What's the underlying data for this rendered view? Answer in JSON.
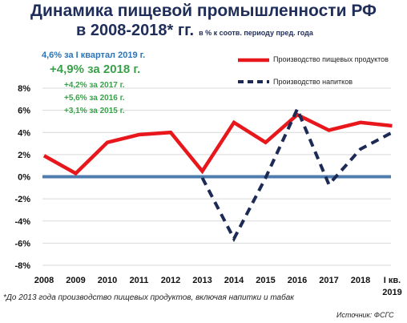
{
  "title_line1": "Динамика пищевой промышленности РФ",
  "title_line2": "в 2008-2018* гг.",
  "title_sub": "в % к соотв. периоду пред. года",
  "annotations": {
    "q1_2019": "4,6% за I квартал 2019 г.",
    "y2018": "+4,9% за 2018 г.",
    "y2017": "+4,2% за 2017 г.",
    "y2016": "+5,6% за 2016 г.",
    "y2015": "+3,1% за 2015 г."
  },
  "footnote": "*До 2013 года производство  пищевых продуктов,  включая напитки  и табак",
  "source": "Источник: ФСГС",
  "colors": {
    "food": "#e8171b",
    "drinks": "#1c2a55",
    "zero_line": "#4f7cae",
    "text": "#1f2d59"
  },
  "chart_data": {
    "type": "line",
    "categories": [
      "2008",
      "2009",
      "2010",
      "2011",
      "2012",
      "2013",
      "2014",
      "2015",
      "2016",
      "2017",
      "2018",
      "I кв. 2019"
    ],
    "category_lines": [
      [
        "2008"
      ],
      [
        "2009"
      ],
      [
        "2010"
      ],
      [
        "2011"
      ],
      [
        "2012"
      ],
      [
        "2013"
      ],
      [
        "2014"
      ],
      [
        "2015"
      ],
      [
        "2016"
      ],
      [
        "2017"
      ],
      [
        "2018"
      ],
      [
        "I кв.",
        "2019"
      ]
    ],
    "y_ticks": [
      "8%",
      "6%",
      "4%",
      "2%",
      "0%",
      "-2%",
      "-4%",
      "-6%",
      "-8%"
    ],
    "y_tick_values": [
      8,
      6,
      4,
      2,
      0,
      -2,
      -4,
      -6,
      -8
    ],
    "ylim": [
      -8,
      8
    ],
    "grid": true,
    "legend_position": "top-right",
    "series": [
      {
        "name": "Производство пищевых продуктов",
        "style": "solid",
        "values": [
          1.9,
          0.3,
          3.1,
          3.8,
          4.0,
          0.5,
          4.9,
          3.1,
          5.6,
          4.2,
          4.9,
          4.6
        ]
      },
      {
        "name": "Производство напитков",
        "style": "dashed",
        "values": [
          null,
          null,
          null,
          null,
          null,
          -0.1,
          -5.6,
          -0.1,
          6.1,
          -0.7,
          2.5,
          4.0
        ]
      }
    ]
  }
}
